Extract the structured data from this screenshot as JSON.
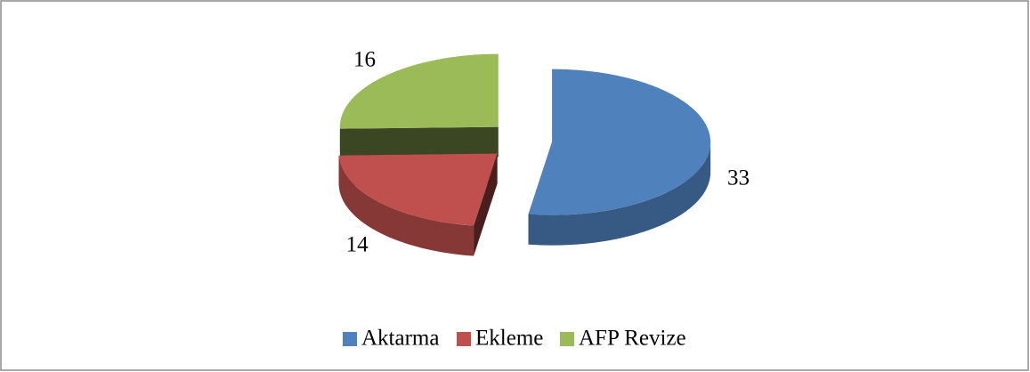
{
  "chart_data": {
    "type": "pie",
    "categories": [
      "Aktarma",
      "Ekleme",
      "AFP Revize"
    ],
    "values": [
      33,
      14,
      16
    ],
    "colors": [
      "#4f81bd",
      "#c0504d",
      "#9bbb59"
    ],
    "legend": "bottom",
    "exploded": true,
    "three_d": true
  }
}
